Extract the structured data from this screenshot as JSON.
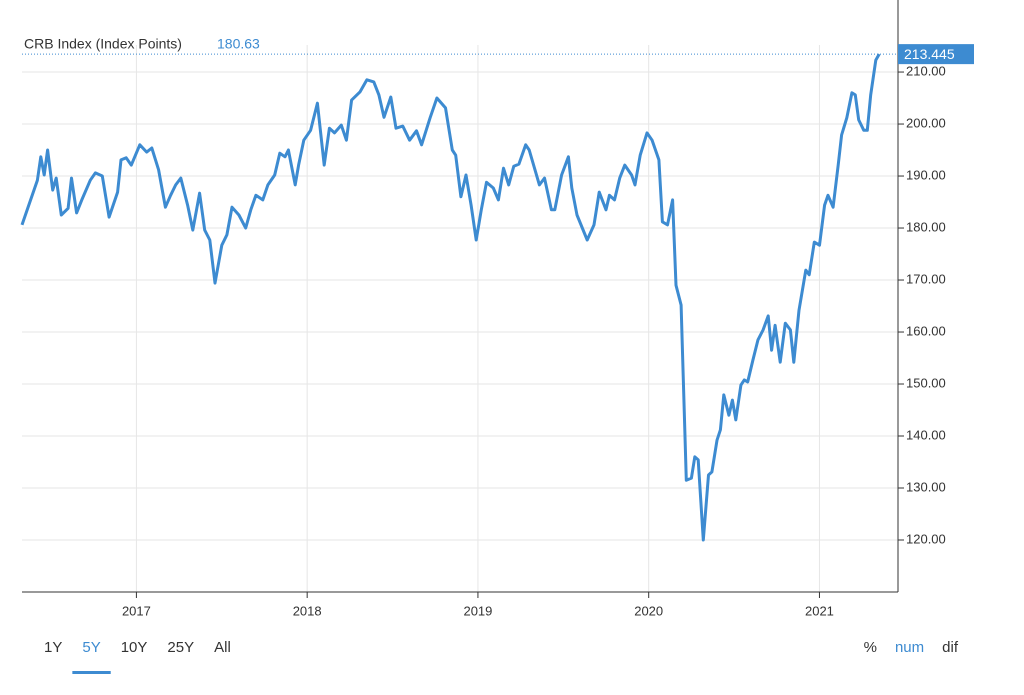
{
  "chart_data": {
    "type": "line",
    "title": "CRB Index (Index Points)",
    "current_value": 180.63,
    "last_value": 213.445,
    "x": [
      2016.33,
      2016.37,
      2016.42,
      2016.44,
      2016.46,
      2016.48,
      2016.51,
      2016.53,
      2016.56,
      2016.6,
      2016.62,
      2016.65,
      2016.68,
      2016.73,
      2016.76,
      2016.8,
      2016.84,
      2016.89,
      2016.91,
      2016.94,
      2016.97,
      2017.02,
      2017.06,
      2017.09,
      2017.13,
      2017.17,
      2017.2,
      2017.23,
      2017.26,
      2017.3,
      2017.33,
      2017.37,
      2017.4,
      2017.43,
      2017.46,
      2017.5,
      2017.53,
      2017.56,
      2017.6,
      2017.64,
      2017.67,
      2017.7,
      2017.74,
      2017.77,
      2017.81,
      2017.84,
      2017.87,
      2017.89,
      2017.93,
      2017.95,
      2017.98,
      2018.02,
      2018.06,
      2018.1,
      2018.13,
      2018.16,
      2018.2,
      2018.23,
      2018.26,
      2018.31,
      2018.35,
      2018.39,
      2018.42,
      2018.45,
      2018.49,
      2018.52,
      2018.56,
      2018.6,
      2018.64,
      2018.67,
      2018.72,
      2018.76,
      2018.81,
      2018.85,
      2018.87,
      2018.9,
      2018.93,
      2018.96,
      2018.99,
      2019.02,
      2019.05,
      2019.09,
      2019.12,
      2019.15,
      2019.18,
      2019.21,
      2019.24,
      2019.28,
      2019.3,
      2019.36,
      2019.39,
      2019.43,
      2019.45,
      2019.49,
      2019.53,
      2019.55,
      2019.58,
      2019.64,
      2019.68,
      2019.71,
      2019.75,
      2019.77,
      2019.8,
      2019.83,
      2019.86,
      2019.9,
      2019.92,
      2019.95,
      2019.99,
      2020.02,
      2020.06,
      2020.08,
      2020.11,
      2020.14,
      2020.16,
      2020.19,
      2020.22,
      2020.25,
      2020.27,
      2020.29,
      2020.32,
      2020.35,
      2020.37,
      2020.4,
      2020.42,
      2020.44,
      2020.47,
      2020.49,
      2020.51,
      2020.54,
      2020.56,
      2020.58,
      2020.61,
      2020.64,
      2020.67,
      2020.7,
      2020.72,
      2020.74,
      2020.77,
      2020.8,
      2020.83,
      2020.85,
      2020.88,
      2020.92,
      2020.94,
      2020.97,
      2021.0,
      2021.03,
      2021.05,
      2021.08,
      2021.11,
      2021.13,
      2021.16,
      2021.19,
      2021.21,
      2021.23,
      2021.26,
      2021.28,
      2021.3,
      2021.33,
      2021.35
    ],
    "series": [
      {
        "name": "CRB Index",
        "color": "#3d8bd1",
        "values": [
          180.6,
          184.4,
          189.2,
          193.7,
          190.2,
          195,
          187.3,
          189.6,
          182.5,
          183.8,
          189.6,
          182.9,
          185.4,
          189.2,
          190.6,
          190,
          182.1,
          186.9,
          193.1,
          193.5,
          192.1,
          196,
          194.6,
          195.4,
          191.2,
          184,
          186.3,
          188.3,
          189.6,
          184.4,
          179.6,
          186.7,
          179.6,
          177.7,
          169.4,
          176.7,
          178.7,
          184,
          182.5,
          180,
          183.5,
          186.3,
          185.4,
          188.3,
          190.2,
          194.4,
          193.7,
          195,
          188.3,
          192.1,
          196.9,
          198.8,
          204,
          192.1,
          199.2,
          198.3,
          199.8,
          196.9,
          204.6,
          206.2,
          208.5,
          208.1,
          205.6,
          201.3,
          205.2,
          199.2,
          199.6,
          196.9,
          198.7,
          196,
          201.2,
          205,
          203.1,
          195,
          194,
          186,
          190.2,
          184.4,
          177.7,
          183.5,
          188.8,
          187.7,
          185.4,
          191.5,
          188.3,
          191.9,
          192.3,
          196,
          195,
          188.3,
          189.6,
          183.5,
          183.5,
          190.2,
          193.7,
          187.7,
          182.5,
          177.7,
          180.6,
          186.9,
          183.5,
          186.3,
          185.4,
          189.6,
          192.1,
          190.2,
          188.3,
          194,
          198.3,
          196.9,
          193.1,
          181.2,
          180.6,
          185.4,
          169,
          165.2,
          131.5,
          131.9,
          136,
          135.4,
          120,
          132.5,
          133.1,
          139.2,
          141.2,
          147.9,
          144,
          146.9,
          143.1,
          149.8,
          150.8,
          150.4,
          154.6,
          158.5,
          160.4,
          163.1,
          156.5,
          161.3,
          154.2,
          161.7,
          160.4,
          154.2,
          164.2,
          171.9,
          171,
          177.3,
          176.7,
          184.4,
          186.3,
          184,
          192.1,
          197.9,
          201.2,
          206,
          205.6,
          200.8,
          198.8,
          198.8,
          205.6,
          212.3,
          213.445
        ]
      }
    ],
    "xlim": [
      2016.33,
      2021.46
    ],
    "xticks": [
      2017,
      2018,
      2019,
      2020,
      2021
    ],
    "ylim": [
      110,
      215.2
    ],
    "yticks": [
      {
        "value": 120,
        "label": "120.00"
      },
      {
        "value": 130,
        "label": "130.00"
      },
      {
        "value": 140,
        "label": "140.00"
      },
      {
        "value": 150,
        "label": "150.00"
      },
      {
        "value": 160,
        "label": "160.00"
      },
      {
        "value": 170,
        "label": "170.00"
      },
      {
        "value": 180,
        "label": "180.00"
      },
      {
        "value": 190,
        "label": "190.00"
      },
      {
        "value": 200,
        "label": "200.00"
      },
      {
        "value": 210,
        "label": "210.00"
      }
    ],
    "grid": true,
    "ranges": [
      "1Y",
      "5Y",
      "10Y",
      "25Y",
      "All"
    ],
    "selected_range": 1,
    "modes": [
      "%",
      "num",
      "dif"
    ],
    "selected_mode": 1
  }
}
